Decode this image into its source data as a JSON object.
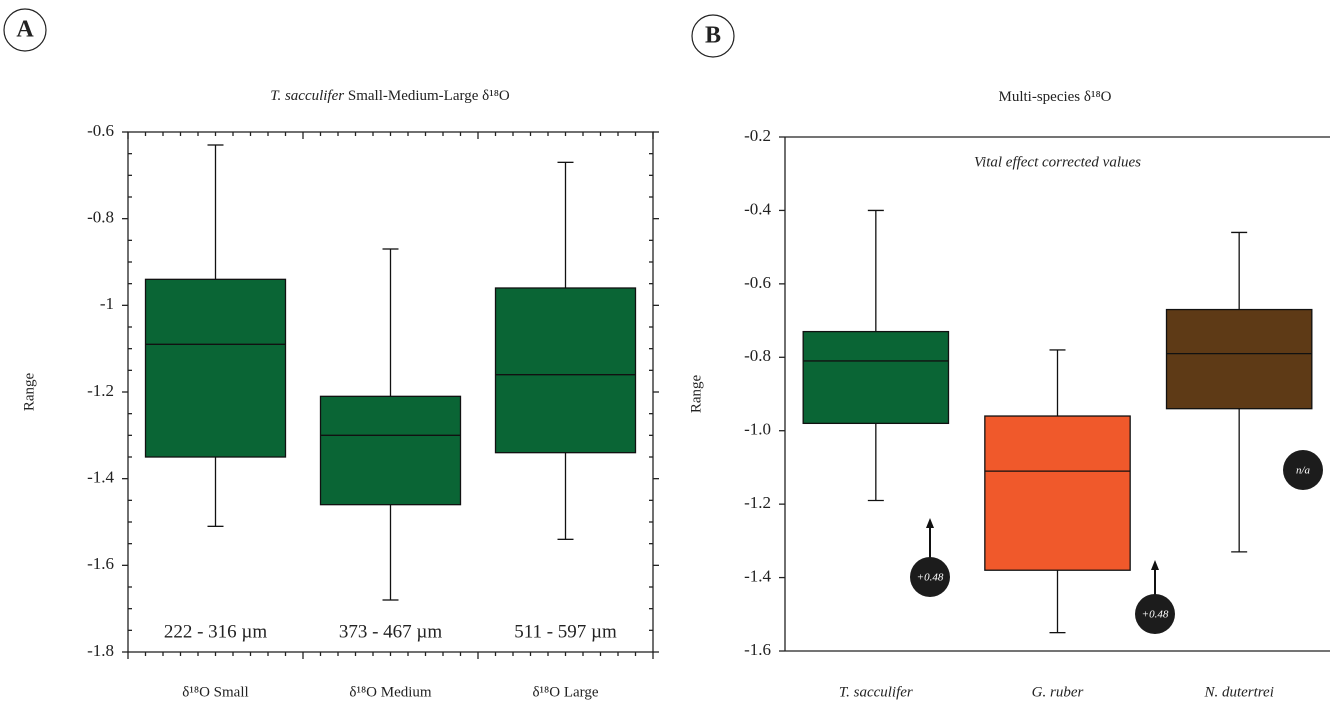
{
  "chart_data": [
    {
      "type": "box",
      "panel_label": "A",
      "title_italic": "T. sacculifer",
      "title": "Small-Medium-Large δ¹⁸O",
      "ylabel": "Range",
      "categories": [
        "δ¹⁸O Small",
        "δ¹⁸O Medium",
        "δ¹⁸O Large"
      ],
      "boxes": [
        {
          "whislo": -1.51,
          "q1": -1.35,
          "med": -1.09,
          "q3": -0.94,
          "whishi": -0.63
        },
        {
          "whislo": -1.68,
          "q1": -1.46,
          "med": -1.3,
          "q3": -1.21,
          "whishi": -0.87
        },
        {
          "whislo": -1.54,
          "q1": -1.34,
          "med": -1.16,
          "q3": -0.96,
          "whishi": -0.67
        }
      ],
      "colors": [
        "#0a6535",
        "#0a6535",
        "#0a6535"
      ],
      "ylim": [
        -1.8,
        -0.6
      ],
      "yticks": [
        -0.6,
        -0.8,
        -1,
        -1.2,
        -1.4,
        -1.6,
        -1.8
      ],
      "size_labels": [
        "222 - 316 µm",
        "373 - 467 µm",
        "511 - 597 µm"
      ]
    },
    {
      "type": "box",
      "panel_label": "B",
      "title": "Multi-species δ¹⁸O",
      "ylabel": "Range",
      "categories": [
        "T. sacculifer",
        "G. ruber",
        "N. dutertrei"
      ],
      "categories_italic": true,
      "boxes": [
        {
          "whislo": -1.19,
          "q1": -0.98,
          "med": -0.81,
          "q3": -0.73,
          "whishi": -0.4
        },
        {
          "whislo": -1.55,
          "q1": -1.38,
          "med": -1.11,
          "q3": -0.96,
          "whishi": -0.78
        },
        {
          "whislo": -1.33,
          "q1": -0.94,
          "med": -0.79,
          "q3": -0.67,
          "whishi": -0.46
        }
      ],
      "colors": [
        "#0a6535",
        "#f0592b",
        "#5e3a16"
      ],
      "ylim": [
        -1.6,
        -0.2
      ],
      "yticks": [
        -0.2,
        -0.4,
        -0.6,
        -0.8,
        {
          "value": -1,
          "label": "-1.0"
        },
        -1.2,
        -1.4,
        -1.6
      ],
      "note": "Vital effect corrected values",
      "badges": [
        "+0.48",
        "+0.48",
        "n/a"
      ]
    }
  ]
}
